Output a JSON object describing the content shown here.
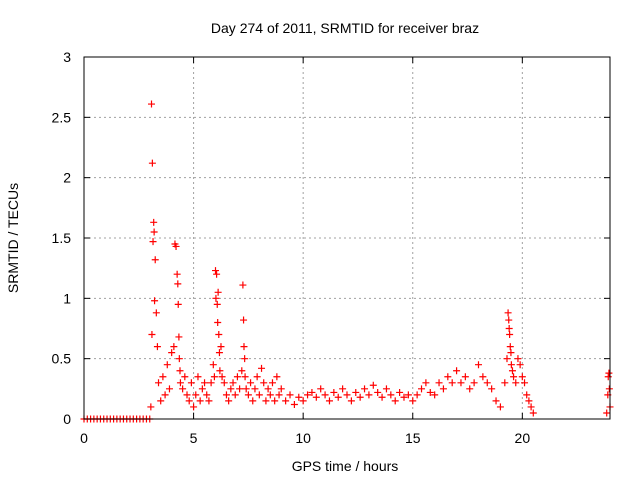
{
  "chart_data": {
    "type": "scatter",
    "title": "Day 274 of 2011, SRMTID for receiver braz",
    "xlabel": "GPS time / hours",
    "ylabel": "SRMTID / TECUs",
    "xlim": [
      0,
      24
    ],
    "ylim": [
      0,
      3
    ],
    "xticks": [
      0,
      5,
      10,
      15,
      20
    ],
    "xtick_labels": [
      "0",
      "5",
      "10",
      "15",
      "20"
    ],
    "yticks": [
      0,
      0.5,
      1,
      1.5,
      2,
      2.5,
      3
    ],
    "ytick_labels": [
      "0",
      "0.5",
      "1",
      "1.5",
      "2",
      "2.5",
      "3"
    ],
    "grid": true,
    "marker": "plus",
    "color": "#ff0000",
    "series": [
      {
        "x": [
          0.0,
          0.15,
          0.3,
          0.45,
          0.6,
          0.75,
          0.9,
          1.05,
          1.2,
          1.35,
          1.5,
          1.65,
          1.8,
          1.95,
          2.1,
          2.25,
          2.4,
          2.55,
          2.7,
          2.85,
          3.0,
          3.05,
          3.08,
          3.1,
          3.12,
          3.15,
          3.18,
          3.2,
          3.22,
          3.25,
          3.3,
          3.35,
          3.4,
          3.5,
          3.6,
          3.7,
          3.8,
          3.9,
          4.0,
          4.1,
          4.15,
          4.2,
          4.25,
          4.28,
          4.3,
          4.33,
          4.35,
          4.38,
          4.4,
          4.5,
          4.6,
          4.7,
          4.8,
          4.9,
          5.0,
          5.1,
          5.2,
          5.3,
          5.4,
          5.5,
          5.6,
          5.7,
          5.8,
          5.9,
          5.95,
          6.0,
          6.02,
          6.05,
          6.08,
          6.1,
          6.12,
          6.15,
          6.18,
          6.2,
          6.25,
          6.3,
          6.4,
          6.5,
          6.6,
          6.7,
          6.8,
          6.9,
          7.0,
          7.1,
          7.2,
          7.25,
          7.28,
          7.3,
          7.33,
          7.35,
          7.4,
          7.5,
          7.6,
          7.7,
          7.8,
          7.9,
          8.0,
          8.1,
          8.2,
          8.3,
          8.4,
          8.5,
          8.6,
          8.7,
          8.8,
          8.9,
          9.0,
          9.2,
          9.4,
          9.6,
          9.8,
          10.0,
          10.2,
          10.4,
          10.6,
          10.8,
          11.0,
          11.2,
          11.4,
          11.6,
          11.8,
          12.0,
          12.2,
          12.4,
          12.6,
          12.8,
          13.0,
          13.2,
          13.4,
          13.6,
          13.8,
          14.0,
          14.2,
          14.4,
          14.6,
          14.8,
          15.0,
          15.2,
          15.4,
          15.6,
          15.8,
          16.0,
          16.2,
          16.4,
          16.6,
          16.8,
          17.0,
          17.2,
          17.4,
          17.6,
          17.8,
          18.0,
          18.2,
          18.4,
          18.6,
          18.8,
          19.0,
          19.2,
          19.3,
          19.35,
          19.38,
          19.4,
          19.42,
          19.45,
          19.48,
          19.5,
          19.55,
          19.6,
          19.7,
          19.8,
          19.9,
          20.0,
          20.1,
          20.2,
          20.3,
          20.4,
          20.5,
          23.85,
          23.9,
          23.92,
          23.95,
          23.97,
          24.0
        ],
        "y": [
          0.0,
          0.0,
          0.0,
          0.0,
          0.0,
          0.0,
          0.0,
          0.0,
          0.0,
          0.0,
          0.0,
          0.0,
          0.0,
          0.0,
          0.0,
          0.0,
          0.0,
          0.0,
          0.0,
          0.0,
          0.0,
          0.1,
          2.61,
          0.7,
          2.12,
          1.47,
          1.63,
          1.55,
          0.98,
          1.32,
          0.88,
          0.6,
          0.3,
          0.15,
          0.35,
          0.2,
          0.45,
          0.25,
          0.55,
          0.6,
          1.45,
          1.43,
          1.2,
          1.12,
          0.95,
          0.68,
          0.5,
          0.4,
          0.3,
          0.25,
          0.35,
          0.2,
          0.15,
          0.3,
          0.1,
          0.2,
          0.35,
          0.15,
          0.25,
          0.3,
          0.2,
          0.15,
          0.3,
          0.45,
          0.35,
          1.23,
          1.0,
          1.2,
          0.95,
          0.8,
          1.05,
          0.7,
          0.55,
          0.4,
          0.6,
          0.35,
          0.3,
          0.2,
          0.15,
          0.25,
          0.3,
          0.2,
          0.35,
          0.25,
          0.4,
          1.11,
          0.82,
          0.6,
          0.5,
          0.35,
          0.25,
          0.2,
          0.3,
          0.15,
          0.25,
          0.35,
          0.2,
          0.42,
          0.3,
          0.15,
          0.25,
          0.2,
          0.3,
          0.15,
          0.35,
          0.2,
          0.25,
          0.15,
          0.2,
          0.12,
          0.18,
          0.15,
          0.2,
          0.22,
          0.18,
          0.25,
          0.2,
          0.15,
          0.22,
          0.18,
          0.25,
          0.2,
          0.15,
          0.22,
          0.18,
          0.25,
          0.2,
          0.28,
          0.22,
          0.18,
          0.25,
          0.2,
          0.15,
          0.22,
          0.18,
          0.2,
          0.15,
          0.2,
          0.25,
          0.3,
          0.22,
          0.2,
          0.3,
          0.25,
          0.35,
          0.3,
          0.4,
          0.3,
          0.35,
          0.25,
          0.3,
          0.45,
          0.35,
          0.3,
          0.25,
          0.15,
          0.1,
          0.3,
          0.5,
          0.88,
          0.82,
          0.75,
          0.7,
          0.6,
          0.55,
          0.45,
          0.4,
          0.35,
          0.3,
          0.5,
          0.45,
          0.35,
          0.3,
          0.2,
          0.15,
          0.1,
          0.05,
          0.05,
          0.2,
          0.35,
          0.38,
          0.25,
          0.1
        ]
      }
    ]
  }
}
